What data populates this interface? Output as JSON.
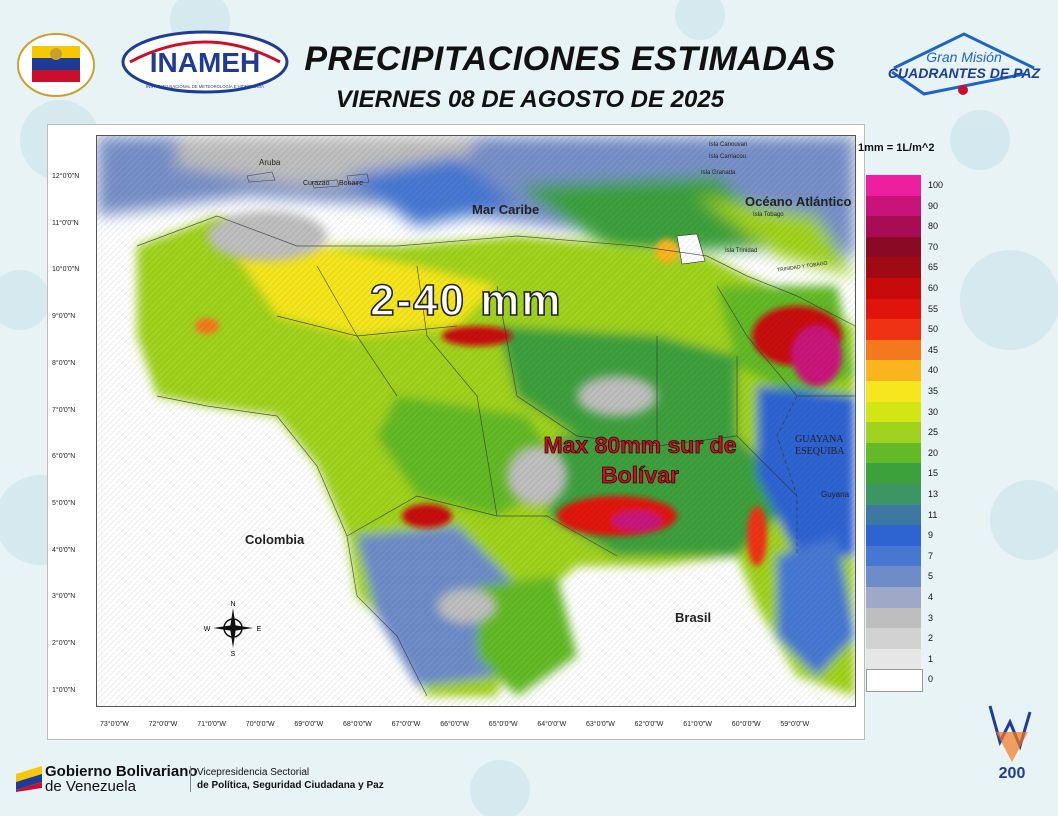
{
  "header": {
    "title": "PRECIPITACIONES ESTIMADAS",
    "date": "VIERNES 08 DE AGOSTO DE 2025"
  },
  "logos": {
    "inameh": "INAMEH",
    "inameh_sub": "INSTITUTO NACIONAL DE METEOROLOGÍA E HIDROLOGÍA",
    "gmcp_line1": "Gran Misión",
    "gmcp_line2": "CUADRANTES DE PAZ",
    "badge": "200"
  },
  "map": {
    "unit_label": "1mm = 1L/m^2",
    "lat_labels": [
      "12°0'0\"N",
      "11°0'0\"N",
      "10°0'0\"N",
      "9°0'0\"N",
      "8°0'0\"N",
      "7°0'0\"N",
      "6°0'0\"N",
      "5°0'0\"N",
      "4°0'0\"N",
      "3°0'0\"N",
      "2°0'0\"N",
      "1°0'0\"N"
    ],
    "lon_labels": [
      "73°0'0\"W",
      "72°0'0\"W",
      "71°0'0\"W",
      "70°0'0\"W",
      "69°0'0\"W",
      "68°0'0\"W",
      "67°0'0\"W",
      "66°0'0\"W",
      "65°0'0\"W",
      "64°0'0\"W",
      "63°0'0\"W",
      "62°0'0\"W",
      "61°0'0\"W",
      "60°0'0\"W",
      "59°0'0\"W"
    ],
    "places": {
      "aruba": "Aruba",
      "curazao": "Curazao",
      "bonaire": "Bonaire",
      "mar_caribe": "Mar Caribe",
      "oceano": "Océano Atlántico",
      "canouvan": "Isla Canouvan",
      "carriacou": "Isla Carriacou",
      "granada": "Isla Granada",
      "tobago": "Isla Tobago",
      "trinidad": "Isla Trinidad",
      "tt": "TRINIDAD Y TOBAGO",
      "guayana_esequiba_1": "GUAYANA",
      "guayana_esequiba_2": "ESEQUIBA",
      "guyana": "Guyana",
      "colombia": "Colombia",
      "brasil": "Brasil"
    },
    "compass": {
      "n": "N",
      "s": "S",
      "e": "E",
      "w": "W"
    },
    "annotation_range": "2-40 mm",
    "annotation_max_1": "Max 80mm  sur de",
    "annotation_max_2": "Bolívar"
  },
  "legend": {
    "values": [
      "100",
      "90",
      "80",
      "70",
      "65",
      "60",
      "55",
      "50",
      "45",
      "40",
      "35",
      "30",
      "25",
      "20",
      "15",
      "13",
      "11",
      "9",
      "7",
      "5",
      "4",
      "3",
      "2",
      "1",
      "0"
    ],
    "colors": [
      "#ee1ea0",
      "#c8147a",
      "#a80c55",
      "#8a0a25",
      "#a00a14",
      "#c80a0a",
      "#e0140a",
      "#f03214",
      "#f5781e",
      "#fab41e",
      "#f5e61e",
      "#d2e614",
      "#a0d21e",
      "#64b928",
      "#3ca03c",
      "#3c9664",
      "#3c78a0",
      "#2d64d2",
      "#4678d2",
      "#6e8cc8",
      "#a0a8c8",
      "#bebebe",
      "#d2d2d2",
      "#e6e6e6",
      "#ffffff"
    ]
  },
  "footer": {
    "gob_line1": "Gobierno Bolivariano",
    "gob_line2": "de Venezuela",
    "vice_line1": "Vicepresidencia Sectorial",
    "vice_line2": "de Política, Seguridad Ciudadana y Paz"
  }
}
